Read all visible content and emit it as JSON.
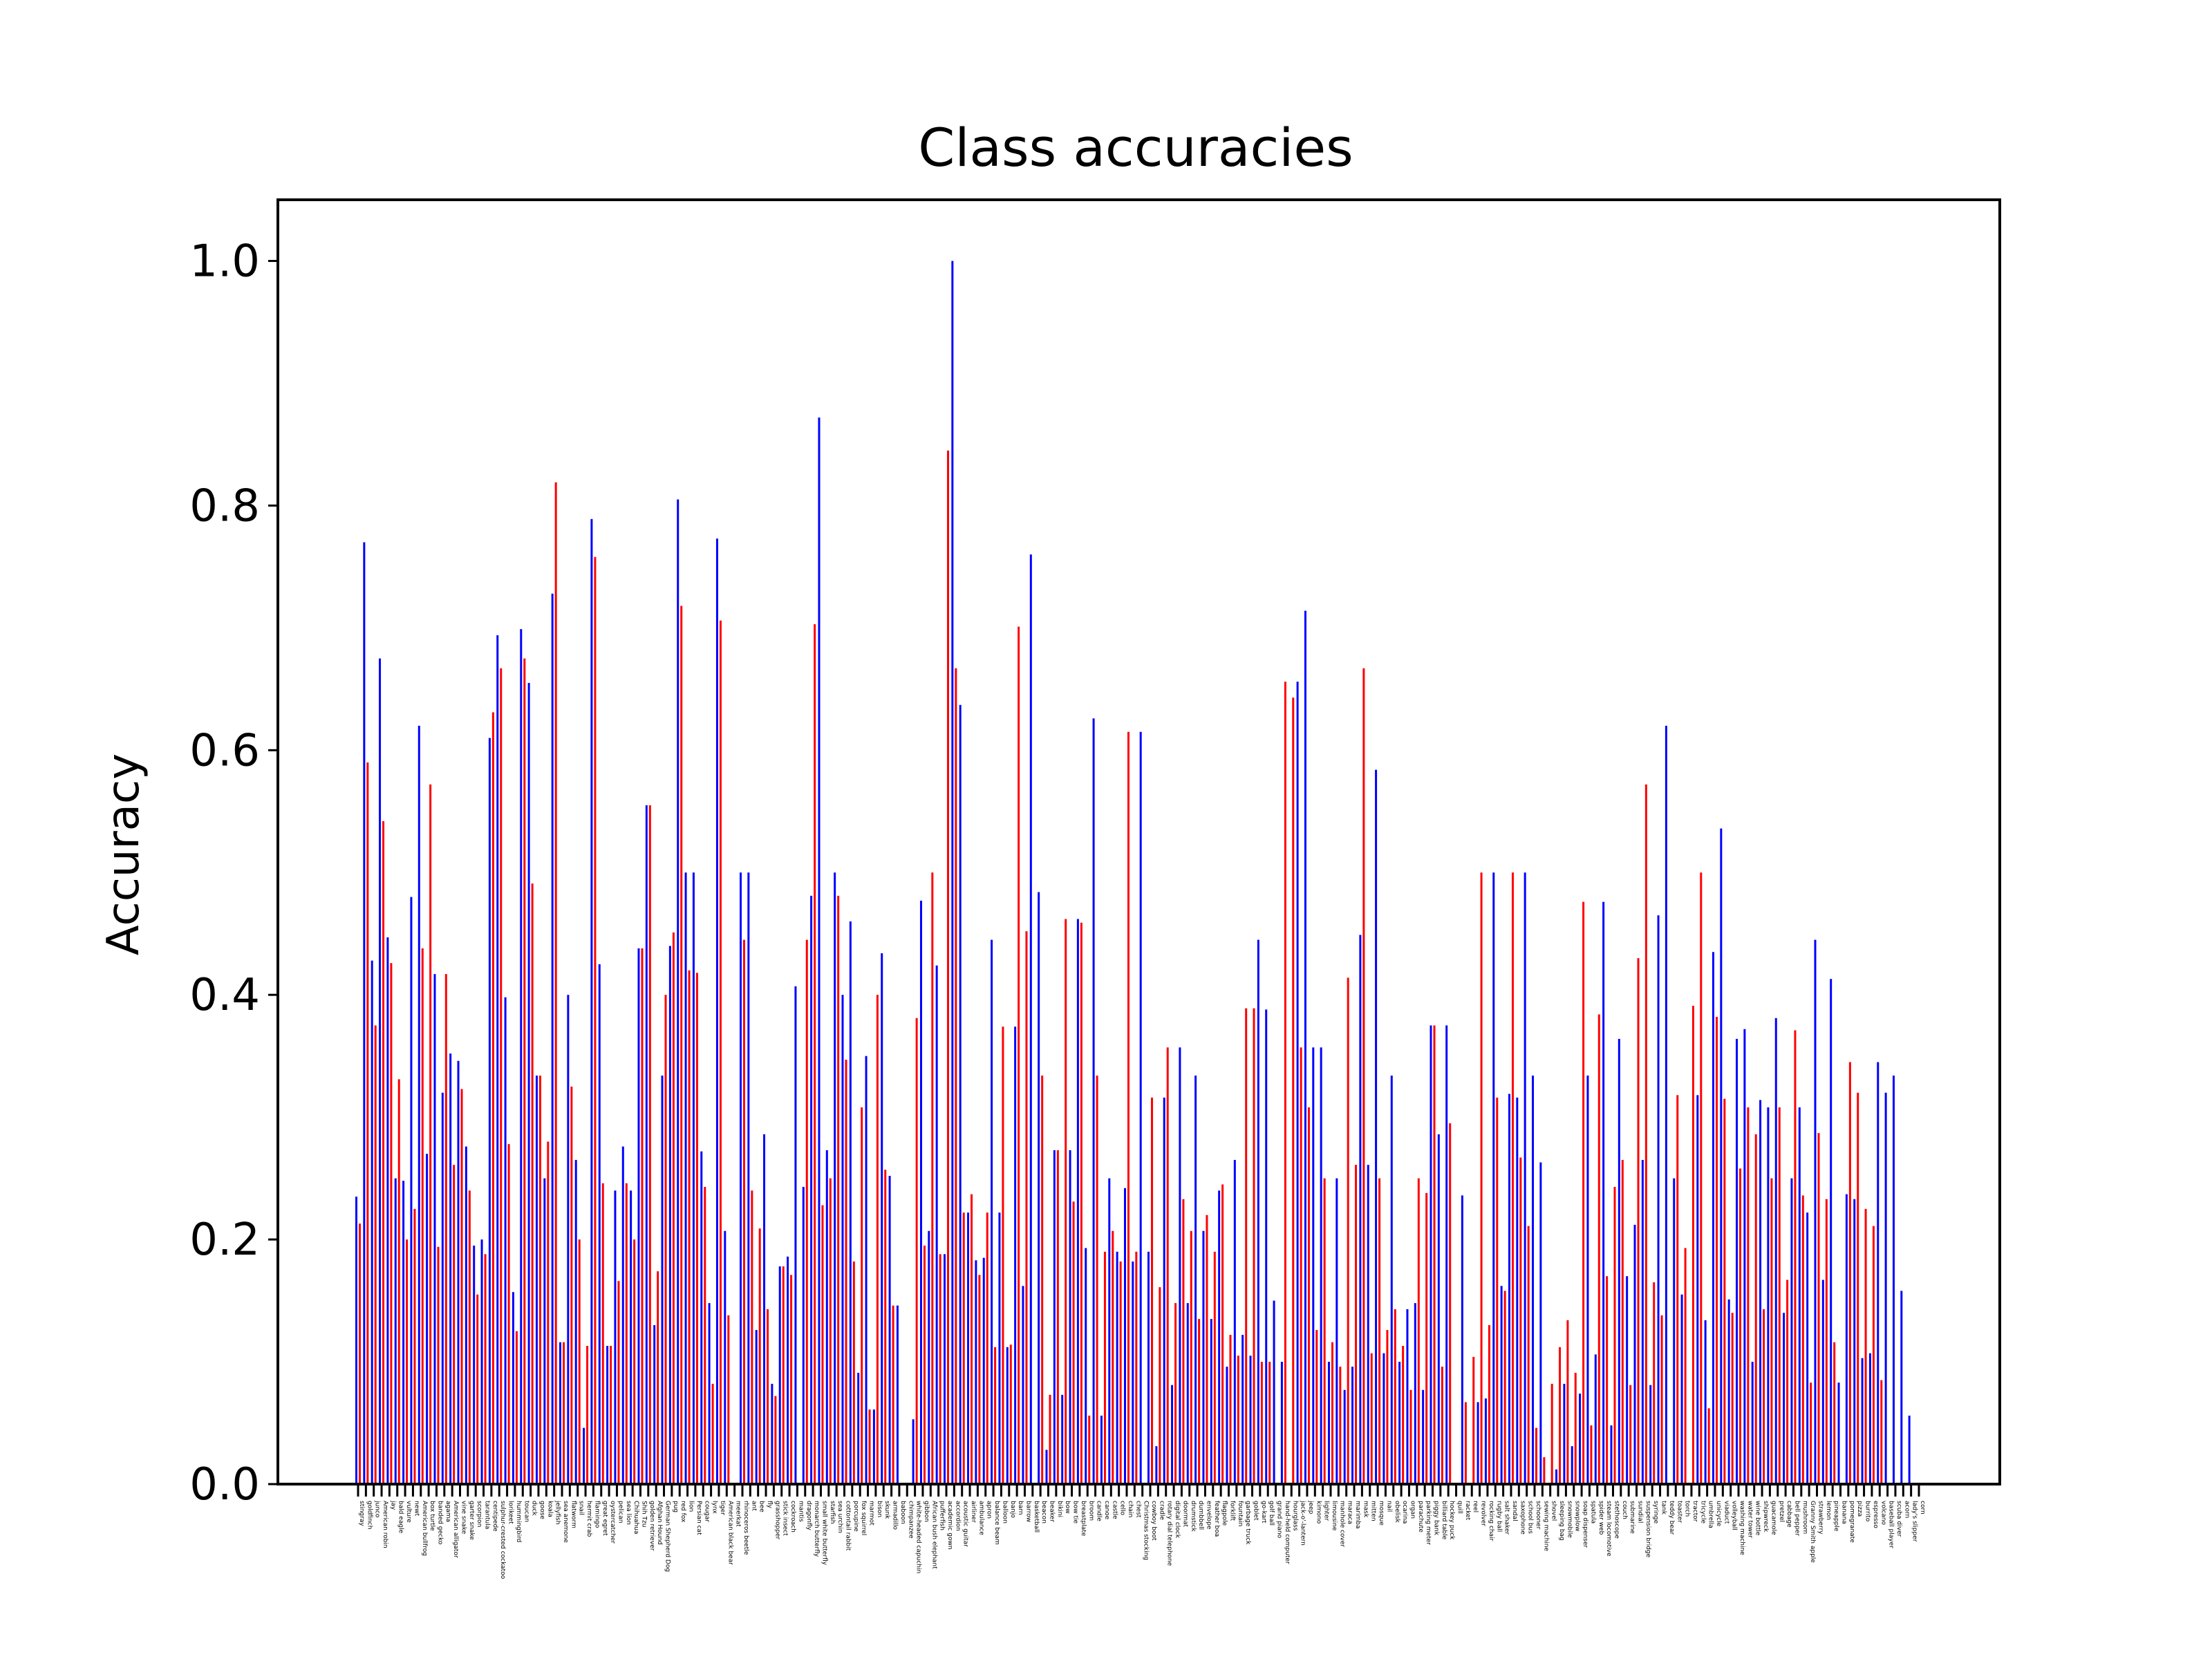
{
  "chart_data": {
    "type": "bar",
    "title": "Class accuracies",
    "xlabel": "",
    "ylabel": "Accuracy",
    "ylim": [
      0,
      1.05
    ],
    "yticks": [
      "0.0",
      "0.2",
      "0.4",
      "0.6",
      "0.8",
      "1.0"
    ],
    "grid": false,
    "series_colors": [
      "#0000ff",
      "#ff0000"
    ],
    "categories": [
      "stingray",
      "goldfinch",
      "junco",
      "American robin",
      "jay",
      "bald eagle",
      "vulture",
      "newt",
      "American bullfrog",
      "box turtle",
      "banded gecko",
      "agama",
      "American alligator",
      "vine snake",
      "garter snake",
      "scorpion",
      "tarantula",
      "centipede",
      "sulphur-crested cockatoo",
      "lorikeet",
      "hummingbird",
      "toucan",
      "duck",
      "goose",
      "koala",
      "jellyfish",
      "sea anemone",
      "flatworm",
      "snail",
      "hermit crab",
      "flamingo",
      "great egret",
      "oystercatcher",
      "pelican",
      "sea lion",
      "Chihuahua",
      "Shih Tzu",
      "golden retriever",
      "Afghan Hound",
      "German Shepherd Dog",
      "pug",
      "red fox",
      "lion",
      "Persian cat",
      "cougar",
      "lynx",
      "tiger",
      "American black bear",
      "meerkat",
      "rhinoceros beetle",
      "ant",
      "bee",
      "fly",
      "grasshopper",
      "stick insect",
      "cockroach",
      "mantis",
      "dragonfly",
      "monarch butterfly",
      "small white butterfly",
      "starfish",
      "sea urchin",
      "cottontail rabbit",
      "porcupine",
      "fox squirrel",
      "marmot",
      "bison",
      "skunk",
      "armadillo",
      "baboon",
      "chimpanzee",
      "white-headed capuchin",
      "gibbon",
      "African bush elephant",
      "pufferfish",
      "academic gown",
      "accordion",
      "acoustic guitar",
      "airliner",
      "ambulance",
      "apron",
      "balance beam",
      "balloon",
      "banjo",
      "barn",
      "barrow",
      "basketball",
      "beacon",
      "beaker",
      "bikini",
      "bow",
      "bow tie",
      "breastplate",
      "broom",
      "candle",
      "canoe",
      "castle",
      "cello",
      "chain",
      "chest",
      "Christmas stocking",
      "cowboy boot",
      "cradle",
      "rotary dial telephone",
      "digital clock",
      "doormat",
      "drumstick",
      "dumbbell",
      "envelope",
      "feather boa",
      "flagpole",
      "forklift",
      "fountain",
      "garbage truck",
      "goblet",
      "go-kart",
      "golf ball",
      "grand piano",
      "hand-held computer",
      "hourglass",
      "jack-o'-lantern",
      "jeep",
      "kimono",
      "lighter",
      "limousine",
      "manhole cover",
      "maraca",
      "marimba",
      "mask",
      "mitten",
      "mosque",
      "nail",
      "obelisk",
      "ocarina",
      "organ",
      "parachute",
      "parking meter",
      "piggy bank",
      "billiard table",
      "hockey puck",
      "quill",
      "racket",
      "reel",
      "revolver",
      "rocking chair",
      "rugby ball",
      "salt shaker",
      "sandal",
      "saxophone",
      "school bus",
      "schooner",
      "sewing machine",
      "shovel",
      "sleeping bag",
      "snowmobile",
      "snowplow",
      "soap dispenser",
      "spatula",
      "spider web",
      "steam locomotive",
      "stethoscope",
      "couch",
      "submarine",
      "sundial",
      "suspension bridge",
      "syringe",
      "tank",
      "teddy bear",
      "toaster",
      "torch",
      "tractor",
      "tricycle",
      "umbrella",
      "unicycle",
      "viaduct",
      "volleyball",
      "washing machine",
      "water tower",
      "wine bottle",
      "shipwreck",
      "guacamole",
      "pretzel",
      "cabbage",
      "bell pepper",
      "mushroom",
      "Granny Smith apple",
      "strawberry",
      "lemon",
      "pineapple",
      "banana",
      "pomegranate",
      "pizza",
      "burrito",
      "espresso",
      "volcano",
      "baseball player",
      "scuba diver",
      "acorn",
      "lady's slipper",
      "corn"
    ],
    "series": [
      {
        "values": [
          0.235,
          0.77,
          0.428,
          0.675,
          0.447,
          0.25,
          0.248,
          0.48,
          0.62,
          0.27,
          0.417,
          0.32,
          0.352,
          0.346,
          0.276,
          0.195,
          0.2,
          0.61,
          0.694,
          0.398,
          0.157,
          0.699,
          0.655,
          0.334,
          0.25,
          0.728,
          0.116,
          0.4,
          0.265,
          0.046,
          0.789,
          0.425,
          0.113,
          0.24,
          0.276,
          0.24,
          0.438,
          0.555,
          0.13,
          0.334,
          0.44,
          0.805,
          0.5,
          0.5,
          0.272,
          0.148,
          0.773,
          0.207,
          0.0,
          0.5,
          0.5,
          0.126,
          0.286,
          0.082,
          0.178,
          0.186,
          0.407,
          0.243,
          0.481,
          0.872,
          0.273,
          0.5,
          0.4,
          0.46,
          0.091,
          0.35,
          0.061,
          0.434,
          0.252,
          0.146,
          0.0,
          0.053,
          0.477,
          0.207,
          0.424,
          0.188,
          1.0,
          0.637,
          0.222,
          0.183,
          0.185,
          0.445,
          0.222,
          0.112,
          0.374,
          0.162,
          0.76,
          0.484,
          0.028,
          0.273,
          0.073,
          0.273,
          0.462,
          0.193,
          0.626,
          0.056,
          0.25,
          0.19,
          0.242,
          0.182,
          0.615,
          0.19,
          0.031,
          0.316,
          0.081,
          0.357,
          0.148,
          0.334,
          0.207,
          0.135,
          0.24,
          0.096,
          0.265,
          0.122,
          0.105,
          0.445,
          0.388,
          0.15,
          0.1,
          0.0,
          0.656,
          0.714,
          0.357,
          0.357,
          0.1,
          0.25,
          0.077,
          0.096,
          0.449,
          0.261,
          0.584,
          0.107,
          0.334,
          0.1,
          0.143,
          0.148,
          0.077,
          0.375,
          0.286,
          0.375,
          0.0,
          0.236,
          0.0,
          0.067,
          0.07,
          0.5,
          0.162,
          0.319,
          0.316,
          0.5,
          0.334,
          0.263,
          0.0,
          0.012,
          0.082,
          0.031,
          0.074,
          0.334,
          0.106,
          0.476,
          0.048,
          0.364,
          0.17,
          0.212,
          0.265,
          0.081,
          0.465,
          0.62,
          0.25,
          0.155,
          0.0,
          0.318,
          0.134,
          0.435,
          0.536,
          0.151,
          0.364,
          0.372,
          0.1,
          0.314,
          0.308,
          0.381,
          0.14,
          0.25,
          0.308,
          0.222,
          0.445,
          0.167,
          0.413,
          0.083,
          0.237,
          0.233,
          0.103,
          0.107,
          0.345,
          0.32,
          0.334,
          0.158,
          0.056,
          0.0
        ]
      },
      {
        "values": [
          0.213,
          0.59,
          0.375,
          0.542,
          0.426,
          0.331,
          0.2,
          0.225,
          0.438,
          0.572,
          0.194,
          0.417,
          0.261,
          0.323,
          0.24,
          0.155,
          0.188,
          0.631,
          0.667,
          0.278,
          0.125,
          0.675,
          0.491,
          0.334,
          0.28,
          0.819,
          0.116,
          0.325,
          0.2,
          0.113,
          0.758,
          0.246,
          0.113,
          0.166,
          0.246,
          0.2,
          0.438,
          0.555,
          0.174,
          0.4,
          0.451,
          0.718,
          0.42,
          0.418,
          0.243,
          0.082,
          0.706,
          0.138,
          0.0,
          0.445,
          0.24,
          0.209,
          0.143,
          0.072,
          0.178,
          0.171,
          0.0,
          0.445,
          0.703,
          0.228,
          0.25,
          0.481,
          0.347,
          0.182,
          0.308,
          0.061,
          0.4,
          0.257,
          0.146,
          0.0,
          0.0,
          0.381,
          0.195,
          0.5,
          0.188,
          0.845,
          0.667,
          0.222,
          0.237,
          0.171,
          0.222,
          0.112,
          0.374,
          0.114,
          0.701,
          0.452,
          0.0,
          0.334,
          0.073,
          0.273,
          0.462,
          0.231,
          0.459,
          0.056,
          0.334,
          0.19,
          0.207,
          0.182,
          0.615,
          0.19,
          0.0,
          0.316,
          0.161,
          0.357,
          0.148,
          0.233,
          0.207,
          0.135,
          0.22,
          0.19,
          0.245,
          0.122,
          0.105,
          0.389,
          0.389,
          0.1,
          0.1,
          0.0,
          0.656,
          0.643,
          0.357,
          0.308,
          0.126,
          0.25,
          0.116,
          0.096,
          0.414,
          0.261,
          0.667,
          0.107,
          0.25,
          0.126,
          0.143,
          0.113,
          0.077,
          0.25,
          0.238,
          0.375,
          0.096,
          0.295,
          0.0,
          0.067,
          0.104,
          0.5,
          0.13,
          0.316,
          0.158,
          0.5,
          0.267,
          0.211,
          0.046,
          0.022,
          0.082,
          0.112,
          0.134,
          0.091,
          0.476,
          0.048,
          0.384,
          0.17,
          0.243,
          0.265,
          0.081,
          0.43,
          0.572,
          0.165,
          0.138,
          0.0,
          0.318,
          0.193,
          0.391,
          0.5,
          0.062,
          0.382,
          0.315,
          0.14,
          0.258,
          0.308,
          0.286,
          0.143,
          0.25,
          0.308,
          0.167,
          0.371,
          0.236,
          0.083,
          0.287,
          0.233,
          0.116,
          0.0,
          0.345,
          0.32,
          0.225,
          0.211,
          0.085,
          0.0,
          0.0,
          0.0,
          0.0,
          0.0
        ]
      }
    ]
  }
}
